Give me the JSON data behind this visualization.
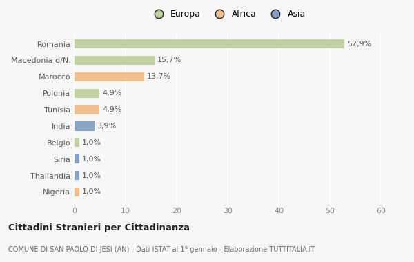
{
  "categories": [
    "Romania",
    "Macedonia d/N.",
    "Marocco",
    "Polonia",
    "Tunisia",
    "India",
    "Belgio",
    "Siria",
    "Thailandia",
    "Nigeria"
  ],
  "values": [
    52.9,
    15.7,
    13.7,
    4.9,
    4.9,
    3.9,
    1.0,
    1.0,
    1.0,
    1.0
  ],
  "labels": [
    "52,9%",
    "15,7%",
    "13,7%",
    "4,9%",
    "4,9%",
    "3,9%",
    "1,0%",
    "1,0%",
    "1,0%",
    "1,0%"
  ],
  "colors": [
    "#b5c98e",
    "#b5c98e",
    "#f0b27a",
    "#b5c98e",
    "#f0b27a",
    "#7090b8",
    "#b5c98e",
    "#7090b8",
    "#7090b8",
    "#f0b27a"
  ],
  "legend": [
    {
      "label": "Europa",
      "color": "#b5c98e"
    },
    {
      "label": "Africa",
      "color": "#f0b27a"
    },
    {
      "label": "Asia",
      "color": "#7090b8"
    }
  ],
  "title": "Cittadini Stranieri per Cittadinanza",
  "subtitle": "COMUNE DI SAN PAOLO DI JESI (AN) - Dati ISTAT al 1° gennaio - Elaborazione TUTTITALIA.IT",
  "xlim": [
    0,
    60
  ],
  "xticks": [
    0,
    10,
    20,
    30,
    40,
    50,
    60
  ],
  "background_color": "#f7f7f7",
  "grid_color": "#ffffff",
  "bar_height": 0.55
}
